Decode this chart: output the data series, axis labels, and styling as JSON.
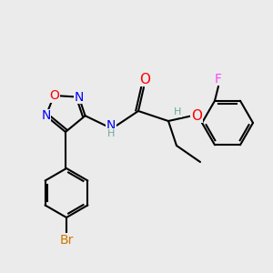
{
  "bg_color": "#ebebeb",
  "bond_color": "#000000",
  "atom_colors": {
    "O": "#ff0000",
    "N": "#0000ff",
    "Br": "#cc7700",
    "F": "#ff44ff",
    "H": "#6aaa9a",
    "C": "#000000"
  },
  "font_size": 9,
  "figsize": [
    3.0,
    3.0
  ],
  "dpi": 100
}
